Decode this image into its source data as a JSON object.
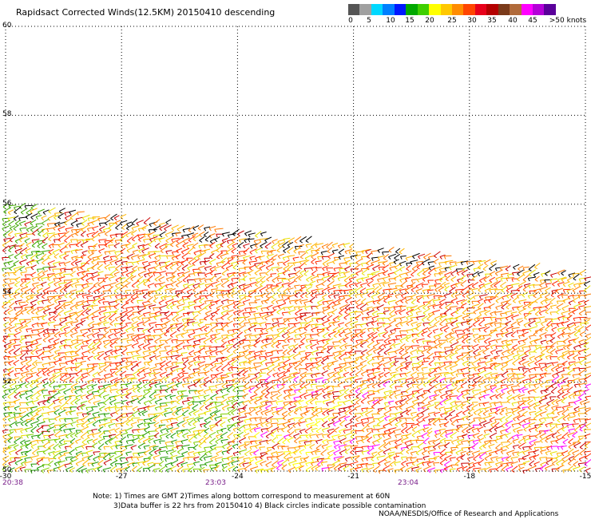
{
  "title": "Rapidsact Corrected Winds(12.5KM) 20150410 descending",
  "colorbar": {
    "colors": [
      "#555555",
      "#a0a0a0",
      "#00d8ff",
      "#0080ff",
      "#0018ff",
      "#00a800",
      "#3fcf00",
      "#ffff00",
      "#ffc800",
      "#ff8c00",
      "#ff4500",
      "#e8001a",
      "#b40000",
      "#7a3a1a",
      "#b06a3a",
      "#ff00ff",
      "#b400d8",
      "#5a009a"
    ],
    "labels": [
      "0",
      "5",
      "10",
      "15",
      "20",
      "25",
      "30",
      "35",
      "40",
      "45",
      ">50 knots"
    ]
  },
  "map": {
    "lat_labels": [
      "60",
      "58",
      "56",
      "54",
      "52",
      "50"
    ],
    "lon_labels": [
      "-30",
      "-27",
      "-24",
      "-21",
      "-18",
      "-15"
    ],
    "time_labels": [
      "20:38",
      "23:03",
      "23:04"
    ]
  },
  "note": {
    "line1": "Note: 1) Times are GMT 2)Times along bottom correspond to measurement at 60N",
    "line2": "3)Data buffer is 22 hrs from 20150410 4) Black circles indicate possible contamination"
  },
  "credit": "NOAA/NESDIS/Office of Research and Applications"
}
